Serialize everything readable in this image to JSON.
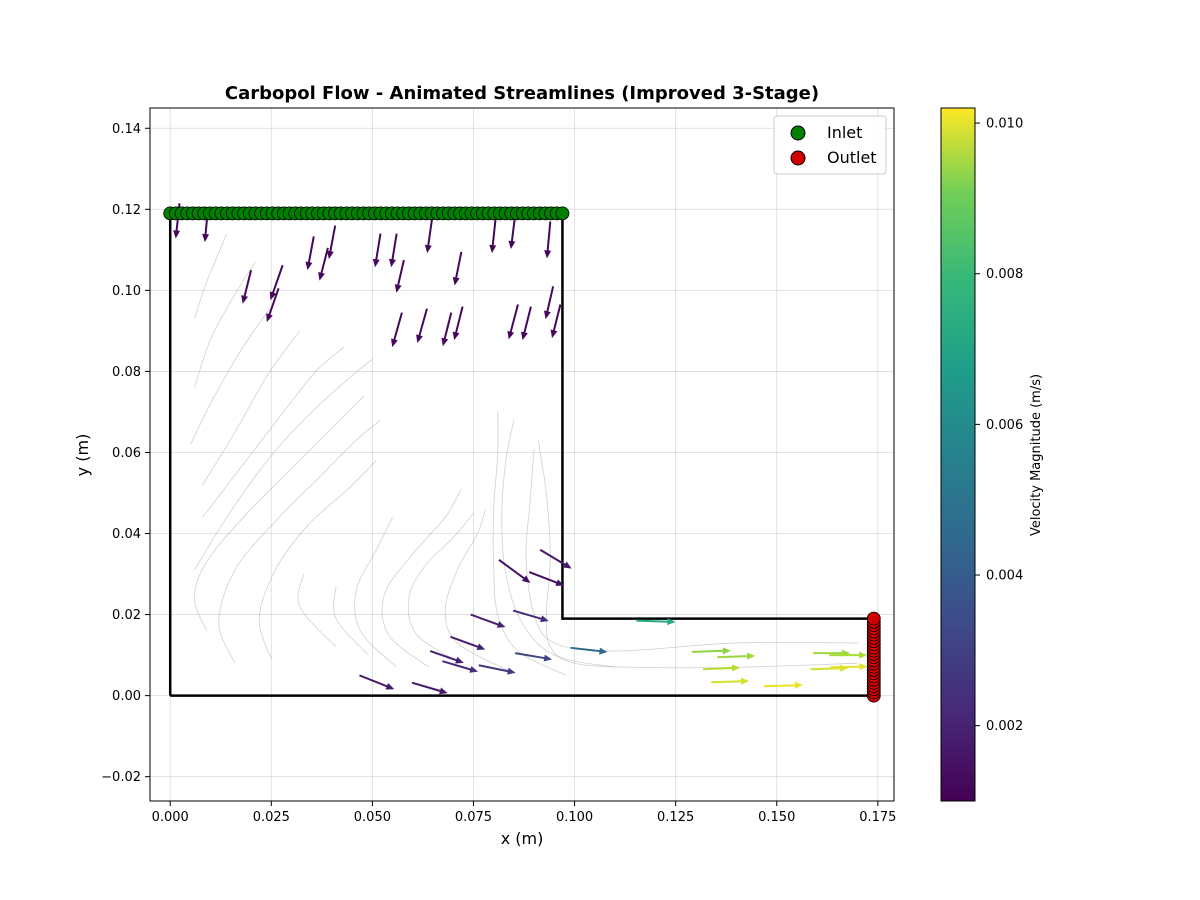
{
  "chart_data": {
    "type": "quiver",
    "title": "Carbopol Flow - Animated Streamlines (Improved 3-Stage)",
    "xlabel": "x (m)",
    "ylabel": "y (m)",
    "xlim": [
      -0.005,
      0.179
    ],
    "ylim": [
      -0.026,
      0.145
    ],
    "xticks": [
      "0.000",
      "0.025",
      "0.050",
      "0.075",
      "0.100",
      "0.125",
      "0.150",
      "0.175"
    ],
    "yticks": [
      "−0.02",
      "0.00",
      "0.02",
      "0.04",
      "0.06",
      "0.08",
      "0.10",
      "0.12",
      "0.14"
    ],
    "grid": true,
    "legend_position": "top-right",
    "legend": [
      {
        "label": "Inlet",
        "color": "#008000"
      },
      {
        "label": "Outlet",
        "color": "#d00000"
      }
    ],
    "colorbar": {
      "label": "Velocity Magnitude (m/s)",
      "min": 0.001,
      "max": 0.0102,
      "ticks": [
        "0.002",
        "0.004",
        "0.006",
        "0.008",
        "0.010"
      ],
      "colormap": "viridis"
    },
    "domain_outline": [
      [
        0,
        0
      ],
      [
        0,
        0.119
      ],
      [
        0.097,
        0.119
      ],
      [
        0.097,
        0.019
      ],
      [
        0.174,
        0.019
      ],
      [
        0.174,
        0
      ],
      [
        0,
        0
      ]
    ],
    "inlet": {
      "y": 0.119,
      "x_start": 0.0,
      "x_end": 0.097,
      "count": 70
    },
    "outlet": {
      "x": 0.174,
      "y_start": 0.0,
      "y_end": 0.019,
      "count": 25
    },
    "streamlines": [
      [
        [
          0.006,
          0.093
        ],
        [
          0.009,
          0.102
        ],
        [
          0.014,
          0.114
        ]
      ],
      [
        [
          0.006,
          0.076
        ],
        [
          0.01,
          0.088
        ],
        [
          0.016,
          0.099
        ],
        [
          0.021,
          0.107
        ]
      ],
      [
        [
          0.005,
          0.062
        ],
        [
          0.011,
          0.074
        ],
        [
          0.018,
          0.086
        ],
        [
          0.025,
          0.096
        ]
      ],
      [
        [
          0.008,
          0.052
        ],
        [
          0.016,
          0.065
        ],
        [
          0.024,
          0.079
        ],
        [
          0.032,
          0.09
        ]
      ],
      [
        [
          0.008,
          0.044
        ],
        [
          0.018,
          0.057
        ],
        [
          0.028,
          0.07
        ],
        [
          0.036,
          0.08
        ],
        [
          0.043,
          0.086
        ]
      ],
      [
        [
          0.006,
          0.031
        ],
        [
          0.014,
          0.044
        ],
        [
          0.024,
          0.058
        ],
        [
          0.034,
          0.069
        ],
        [
          0.045,
          0.079
        ],
        [
          0.05,
          0.083
        ]
      ],
      [
        [
          0.009,
          0.016
        ],
        [
          0.006,
          0.024
        ],
        [
          0.009,
          0.033
        ],
        [
          0.019,
          0.045
        ],
        [
          0.031,
          0.057
        ],
        [
          0.041,
          0.067
        ],
        [
          0.048,
          0.074
        ]
      ],
      [
        [
          0.016,
          0.008
        ],
        [
          0.012,
          0.018
        ],
        [
          0.016,
          0.031
        ],
        [
          0.026,
          0.043
        ],
        [
          0.037,
          0.054
        ],
        [
          0.046,
          0.063
        ],
        [
          0.052,
          0.068
        ]
      ],
      [
        [
          0.025,
          0.009
        ],
        [
          0.022,
          0.019
        ],
        [
          0.026,
          0.031
        ],
        [
          0.034,
          0.042
        ],
        [
          0.044,
          0.051
        ],
        [
          0.051,
          0.058
        ]
      ],
      [
        [
          0.041,
          0.012
        ],
        [
          0.032,
          0.022
        ],
        [
          0.033,
          0.03
        ]
      ],
      [
        [
          0.049,
          0.01
        ],
        [
          0.041,
          0.019
        ],
        [
          0.041,
          0.027
        ]
      ],
      [
        [
          0.056,
          0.007
        ],
        [
          0.047,
          0.016
        ],
        [
          0.046,
          0.026
        ],
        [
          0.051,
          0.036
        ],
        [
          0.055,
          0.044
        ]
      ],
      [
        [
          0.064,
          0.007
        ],
        [
          0.054,
          0.015
        ],
        [
          0.053,
          0.025
        ],
        [
          0.06,
          0.035
        ],
        [
          0.068,
          0.044
        ],
        [
          0.072,
          0.051
        ]
      ],
      [
        [
          0.072,
          0.008
        ],
        [
          0.061,
          0.015
        ],
        [
          0.059,
          0.024
        ],
        [
          0.063,
          0.032
        ],
        [
          0.07,
          0.039
        ],
        [
          0.075,
          0.045
        ]
      ],
      [
        [
          0.084,
          0.006
        ],
        [
          0.071,
          0.013
        ],
        [
          0.068,
          0.021
        ],
        [
          0.071,
          0.031
        ],
        [
          0.076,
          0.04
        ],
        [
          0.078,
          0.046
        ]
      ],
      [
        [
          0.098,
          0.005
        ],
        [
          0.086,
          0.011
        ],
        [
          0.081,
          0.02
        ],
        [
          0.08,
          0.032
        ],
        [
          0.08,
          0.046
        ],
        [
          0.081,
          0.06
        ],
        [
          0.081,
          0.07
        ]
      ],
      [
        [
          0.11,
          0.007
        ],
        [
          0.095,
          0.01
        ],
        [
          0.087,
          0.018
        ],
        [
          0.083,
          0.03
        ],
        [
          0.082,
          0.044
        ],
        [
          0.083,
          0.058
        ],
        [
          0.085,
          0.068
        ]
      ],
      [
        [
          0.17,
          0.013
        ],
        [
          0.14,
          0.013
        ],
        [
          0.11,
          0.011
        ],
        [
          0.095,
          0.013
        ],
        [
          0.09,
          0.02
        ],
        [
          0.088,
          0.034
        ],
        [
          0.089,
          0.048
        ],
        [
          0.09,
          0.061
        ]
      ],
      [
        [
          0.17,
          0.008
        ],
        [
          0.14,
          0.007
        ],
        [
          0.115,
          0.007
        ],
        [
          0.1,
          0.008
        ],
        [
          0.094,
          0.012
        ],
        [
          0.093,
          0.02
        ],
        [
          0.094,
          0.034
        ],
        [
          0.093,
          0.05
        ],
        [
          0.091,
          0.063
        ]
      ]
    ],
    "vectors": [
      {
        "x": 0.0023,
        "y": 0.1215,
        "u": -0.0009,
        "v": -0.0084,
        "mag": 0.0012
      },
      {
        "x": 0.0093,
        "y": 0.12,
        "u": -0.0007,
        "v": -0.0078,
        "mag": 0.0012
      },
      {
        "x": 0.02,
        "y": 0.105,
        "u": -0.002,
        "v": -0.008,
        "mag": 0.0012
      },
      {
        "x": 0.0278,
        "y": 0.1062,
        "u": -0.0029,
        "v": -0.0083,
        "mag": 0.0012
      },
      {
        "x": 0.0268,
        "y": 0.1005,
        "u": -0.0028,
        "v": -0.008,
        "mag": 0.0012
      },
      {
        "x": 0.0355,
        "y": 0.1133,
        "u": -0.0015,
        "v": -0.008,
        "mag": 0.0012
      },
      {
        "x": 0.039,
        "y": 0.1105,
        "u": -0.002,
        "v": -0.0078,
        "mag": 0.0012
      },
      {
        "x": 0.0408,
        "y": 0.116,
        "u": -0.0015,
        "v": -0.008,
        "mag": 0.0012
      },
      {
        "x": 0.052,
        "y": 0.114,
        "u": -0.0013,
        "v": -0.008,
        "mag": 0.0012
      },
      {
        "x": 0.056,
        "y": 0.114,
        "u": -0.0013,
        "v": -0.008,
        "mag": 0.0012
      },
      {
        "x": 0.0578,
        "y": 0.1075,
        "u": -0.0018,
        "v": -0.0078,
        "mag": 0.0012
      },
      {
        "x": 0.0648,
        "y": 0.118,
        "u": -0.0012,
        "v": -0.0085,
        "mag": 0.0012
      },
      {
        "x": 0.072,
        "y": 0.1095,
        "u": -0.0016,
        "v": -0.008,
        "mag": 0.0012
      },
      {
        "x": 0.0805,
        "y": 0.118,
        "u": -0.0009,
        "v": -0.0085,
        "mag": 0.0012
      },
      {
        "x": 0.0853,
        "y": 0.1185,
        "u": -0.001,
        "v": -0.008,
        "mag": 0.0012
      },
      {
        "x": 0.094,
        "y": 0.117,
        "u": -0.0008,
        "v": -0.0088,
        "mag": 0.0012
      },
      {
        "x": 0.0573,
        "y": 0.0945,
        "u": -0.0023,
        "v": -0.0082,
        "mag": 0.0012
      },
      {
        "x": 0.0635,
        "y": 0.0955,
        "u": -0.0023,
        "v": -0.0082,
        "mag": 0.0012
      },
      {
        "x": 0.0695,
        "y": 0.0945,
        "u": -0.002,
        "v": -0.008,
        "mag": 0.0012
      },
      {
        "x": 0.0723,
        "y": 0.096,
        "u": -0.002,
        "v": -0.008,
        "mag": 0.0012
      },
      {
        "x": 0.086,
        "y": 0.0965,
        "u": -0.0022,
        "v": -0.0083,
        "mag": 0.0012
      },
      {
        "x": 0.0892,
        "y": 0.096,
        "u": -0.002,
        "v": -0.008,
        "mag": 0.0012
      },
      {
        "x": 0.0947,
        "y": 0.101,
        "u": -0.0018,
        "v": -0.0078,
        "mag": 0.0012
      },
      {
        "x": 0.0965,
        "y": 0.0965,
        "u": -0.002,
        "v": -0.008,
        "mag": 0.0012
      },
      {
        "x": 0.0813,
        "y": 0.0335,
        "u": 0.0075,
        "v": -0.0055,
        "mag": 0.0014
      },
      {
        "x": 0.0888,
        "y": 0.0305,
        "u": 0.0083,
        "v": -0.0032,
        "mag": 0.0014
      },
      {
        "x": 0.0915,
        "y": 0.036,
        "u": 0.0075,
        "v": -0.0045,
        "mag": 0.0016
      },
      {
        "x": 0.0743,
        "y": 0.02,
        "u": 0.0083,
        "v": -0.003,
        "mag": 0.0018
      },
      {
        "x": 0.0848,
        "y": 0.021,
        "u": 0.0085,
        "v": -0.0025,
        "mag": 0.0021
      },
      {
        "x": 0.0693,
        "y": 0.0145,
        "u": 0.0083,
        "v": -0.003,
        "mag": 0.0018
      },
      {
        "x": 0.0643,
        "y": 0.011,
        "u": 0.008,
        "v": -0.0028,
        "mag": 0.0018
      },
      {
        "x": 0.0673,
        "y": 0.0085,
        "u": 0.0085,
        "v": -0.0025,
        "mag": 0.0021
      },
      {
        "x": 0.0763,
        "y": 0.0075,
        "u": 0.0088,
        "v": -0.0018,
        "mag": 0.0026
      },
      {
        "x": 0.0853,
        "y": 0.0105,
        "u": 0.0088,
        "v": -0.0015,
        "mag": 0.0029
      },
      {
        "x": 0.0468,
        "y": 0.005,
        "u": 0.0083,
        "v": -0.0033,
        "mag": 0.0016
      },
      {
        "x": 0.0598,
        "y": 0.0032,
        "u": 0.0085,
        "v": -0.0025,
        "mag": 0.0016
      },
      {
        "x": 0.099,
        "y": 0.0118,
        "u": 0.0088,
        "v": -0.001,
        "mag": 0.0042
      },
      {
        "x": 0.1153,
        "y": 0.0185,
        "u": 0.0093,
        "v": -0.0003,
        "mag": 0.0065
      },
      {
        "x": 0.129,
        "y": 0.0108,
        "u": 0.0093,
        "v": 0.0003,
        "mag": 0.0086
      },
      {
        "x": 0.1353,
        "y": 0.0095,
        "u": 0.009,
        "v": 0.0003,
        "mag": 0.0088
      },
      {
        "x": 0.1318,
        "y": 0.0065,
        "u": 0.0088,
        "v": 0.0004,
        "mag": 0.0092
      },
      {
        "x": 0.1338,
        "y": 0.0033,
        "u": 0.009,
        "v": 0.0003,
        "mag": 0.0096
      },
      {
        "x": 0.1468,
        "y": 0.0023,
        "u": 0.0093,
        "v": 0.0003,
        "mag": 0.0099
      },
      {
        "x": 0.159,
        "y": 0.0105,
        "u": 0.0088,
        "v": 0.0,
        "mag": 0.0088
      },
      {
        "x": 0.163,
        "y": 0.01,
        "u": 0.009,
        "v": 0.0,
        "mag": 0.009
      },
      {
        "x": 0.1583,
        "y": 0.0065,
        "u": 0.009,
        "v": 0.0003,
        "mag": 0.0096
      },
      {
        "x": 0.1633,
        "y": 0.007,
        "u": 0.0088,
        "v": 0.0002,
        "mag": 0.0098
      }
    ]
  }
}
